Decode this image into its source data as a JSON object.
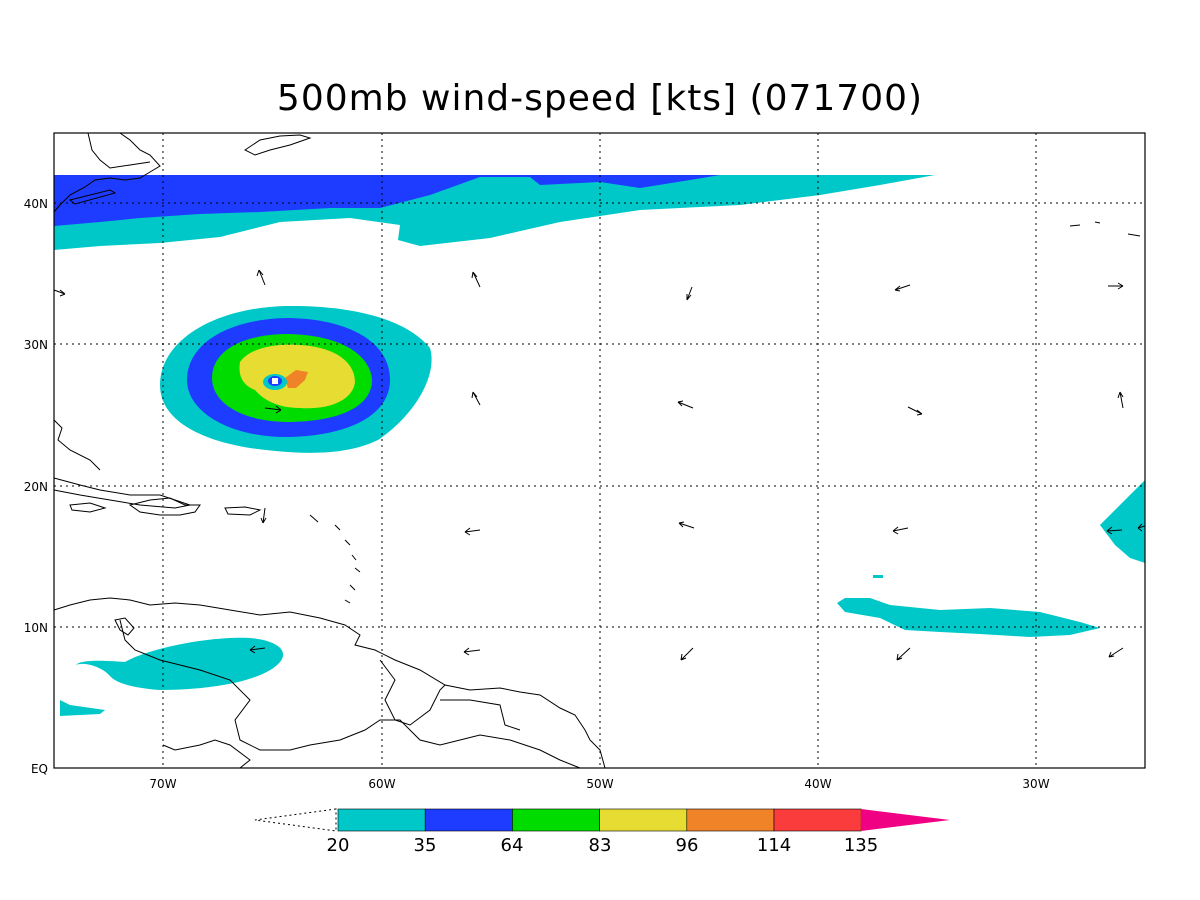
{
  "title": "500mb wind-speed [kts] (071700)",
  "lat_labels": [
    "40N",
    "30N",
    "20N",
    "10N",
    "EQ"
  ],
  "lon_labels": [
    "70W",
    "60W",
    "50W",
    "40W",
    "30W"
  ],
  "colorbar": {
    "thresholds": [
      "20",
      "35",
      "64",
      "83",
      "96",
      "114",
      "135"
    ],
    "colors": [
      "#00c8c8",
      "#1e3cff",
      "#00dc00",
      "#e6dc32",
      "#f08228",
      "#fa3c3c",
      "#f00082"
    ]
  },
  "colors": {
    "cyan": "#00c8c8",
    "blue": "#1e3cff",
    "green": "#00dc00",
    "yellow": "#e6dc32",
    "orange": "#f08228"
  }
}
